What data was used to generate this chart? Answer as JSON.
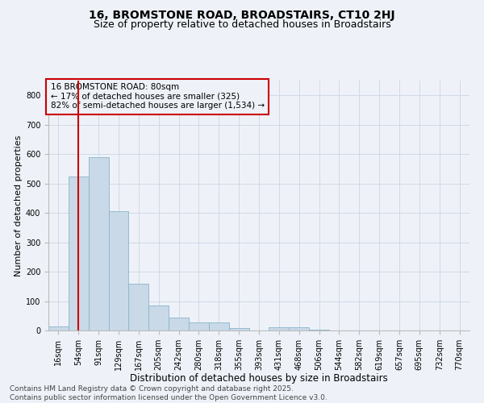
{
  "title1": "16, BROMSTONE ROAD, BROADSTAIRS, CT10 2HJ",
  "title2": "Size of property relative to detached houses in Broadstairs",
  "xlabel": "Distribution of detached houses by size in Broadstairs",
  "ylabel": "Number of detached properties",
  "categories": [
    "16sqm",
    "54sqm",
    "91sqm",
    "129sqm",
    "167sqm",
    "205sqm",
    "242sqm",
    "280sqm",
    "318sqm",
    "355sqm",
    "393sqm",
    "431sqm",
    "468sqm",
    "506sqm",
    "544sqm",
    "582sqm",
    "619sqm",
    "657sqm",
    "695sqm",
    "732sqm",
    "770sqm"
  ],
  "values": [
    15,
    525,
    590,
    405,
    160,
    85,
    45,
    28,
    28,
    8,
    0,
    12,
    12,
    3,
    0,
    0,
    0,
    0,
    0,
    0,
    0
  ],
  "bar_color": "#c9d9e8",
  "bar_edge_color": "#8ab4cc",
  "grid_color": "#d0d8e8",
  "background_color": "#eef2f8",
  "vline_x": 1.0,
  "vline_color": "#cc0000",
  "annotation_line1": "16 BROMSTONE ROAD: 80sqm",
  "annotation_line2": "← 17% of detached houses are smaller (325)",
  "annotation_line3": "82% of semi-detached houses are larger (1,534) →",
  "annotation_box_color": "#cc0000",
  "ylim": [
    0,
    850
  ],
  "yticks": [
    0,
    100,
    200,
    300,
    400,
    500,
    600,
    700,
    800
  ],
  "footer1": "Contains HM Land Registry data © Crown copyright and database right 2025.",
  "footer2": "Contains public sector information licensed under the Open Government Licence v3.0.",
  "title1_fontsize": 10,
  "title2_fontsize": 9,
  "xlabel_fontsize": 8.5,
  "ylabel_fontsize": 8,
  "tick_fontsize": 7,
  "footer_fontsize": 6.5,
  "annotation_fontsize": 7.5
}
